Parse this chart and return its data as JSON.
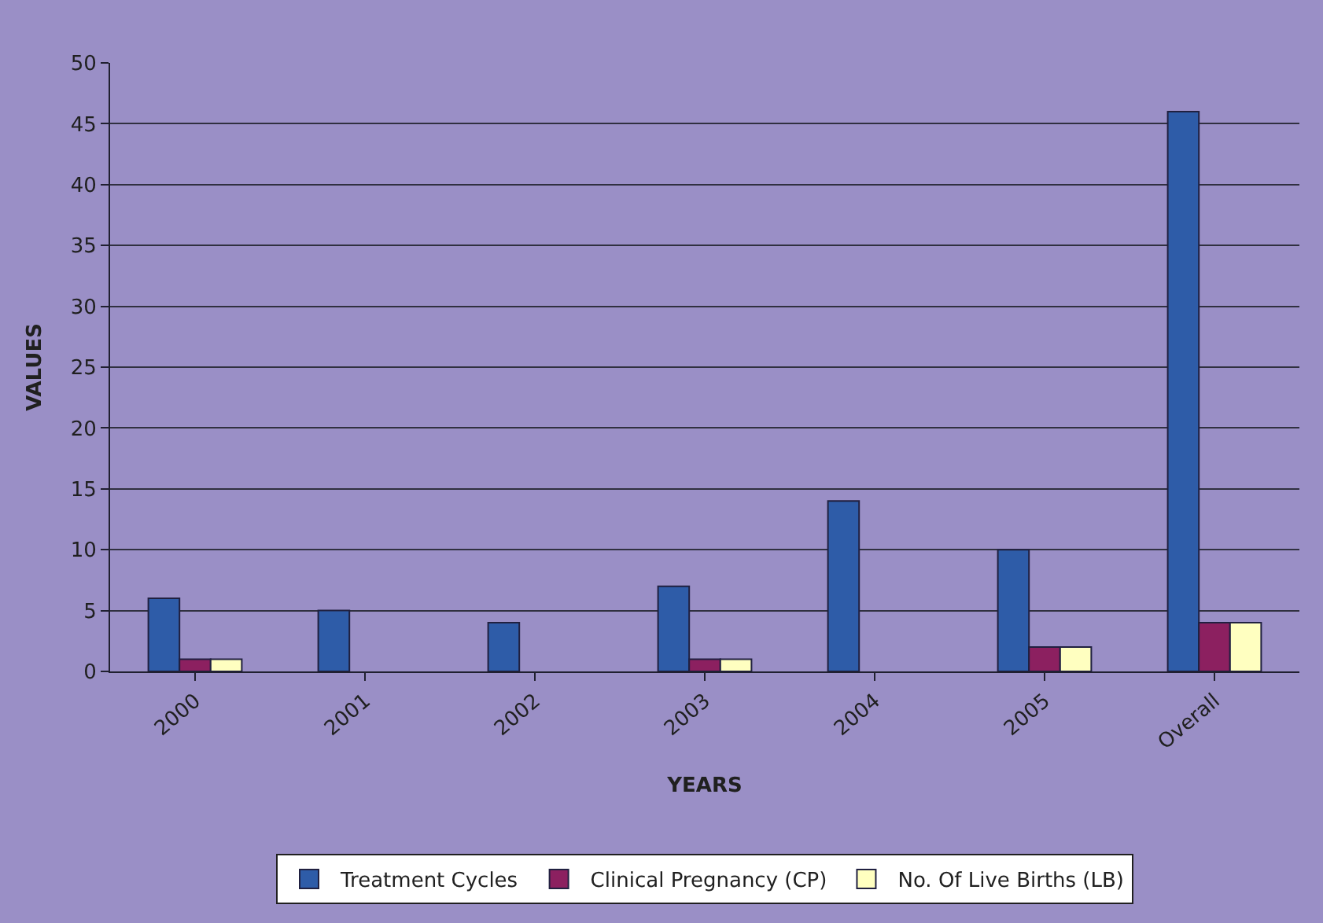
{
  "chart_data": {
    "type": "bar",
    "xlabel": "YEARS",
    "ylabel": "VALUES",
    "categories": [
      "2000",
      "2001",
      "2002",
      "2003",
      "2004",
      "2005",
      "Overall"
    ],
    "series": [
      {
        "name": "Treatment Cycles",
        "color": "#2e5ca8",
        "values": [
          6,
          5,
          4,
          7,
          14,
          10,
          46
        ]
      },
      {
        "name": "Clinical Pregnancy (CP)",
        "color": "#8c2060",
        "values": [
          1,
          0,
          0,
          1,
          0,
          2,
          4
        ]
      },
      {
        "name": "No. Of Live Births (LB)",
        "color": "#ffffc0",
        "values": [
          1,
          0,
          0,
          1,
          0,
          2,
          4
        ]
      }
    ],
    "ylim": [
      0,
      50
    ],
    "yticks": [
      0,
      5,
      10,
      15,
      20,
      25,
      30,
      35,
      40,
      45,
      50
    ],
    "grid": "y",
    "legend": "bottom"
  }
}
